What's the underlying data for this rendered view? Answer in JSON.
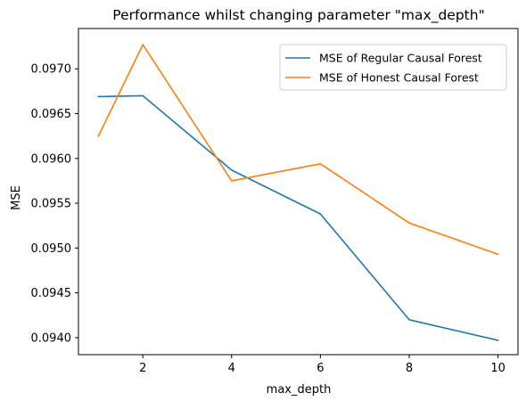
{
  "chart_data": {
    "type": "line",
    "title": "Performance whilst changing parameter \"max_depth\"",
    "xlabel": "max_depth",
    "ylabel": "MSE",
    "x": [
      1,
      2,
      4,
      6,
      8,
      10
    ],
    "xticks": [
      2,
      4,
      6,
      8,
      10
    ],
    "xlim": [
      0.55,
      10.45
    ],
    "yticks": [
      0.094,
      0.0945,
      0.095,
      0.0955,
      0.096,
      0.0965,
      0.097
    ],
    "ytick_labels": [
      "0.0940",
      "0.0945",
      "0.0950",
      "0.0955",
      "0.0960",
      "0.0965",
      "0.0970"
    ],
    "ylim": [
      0.09381,
      0.09745
    ],
    "grid": false,
    "legend_position": "upper right",
    "series": [
      {
        "name": "MSE of Regular Causal Forest",
        "color": "#1f77b4",
        "values": [
          0.09669,
          0.0967,
          0.09587,
          0.09538,
          0.0942,
          0.09397
        ]
      },
      {
        "name": "MSE of Honest Causal Forest",
        "color": "#ff7f0e",
        "values": [
          0.09625,
          0.09727,
          0.09575,
          0.09594,
          0.09528,
          0.09493
        ]
      }
    ]
  }
}
